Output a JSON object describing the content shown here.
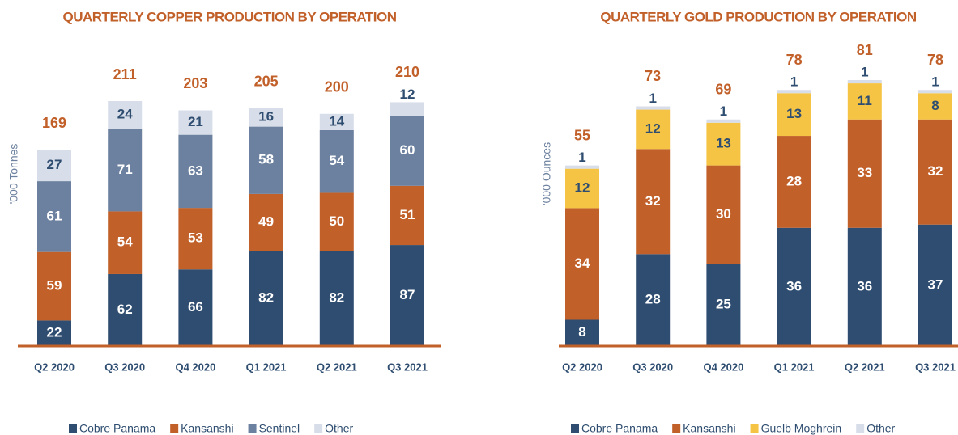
{
  "chart_data": [
    {
      "type": "stacked_bar",
      "title": "QUARTERLY COPPER PRODUCTION BY OPERATION",
      "y_label": "'000 Tonnes",
      "categories": [
        "Q2 2020",
        "Q3 2020",
        "Q4 2020",
        "Q1 2021",
        "Q2 2021",
        "Q3 2021"
      ],
      "series": [
        {
          "name": "Cobre Panama",
          "color": "#2e4d70",
          "values": [
            22,
            62,
            66,
            82,
            82,
            87
          ]
        },
        {
          "name": "Kansanshi",
          "color": "#c2602a",
          "values": [
            59,
            54,
            53,
            49,
            50,
            51
          ]
        },
        {
          "name": "Sentinel",
          "color": "#6c819f",
          "values": [
            61,
            71,
            63,
            58,
            54,
            60
          ]
        },
        {
          "name": "Other",
          "color": "#d8dee9",
          "values": [
            27,
            24,
            21,
            16,
            14,
            12
          ]
        }
      ],
      "totals": [
        169,
        211,
        203,
        205,
        200,
        210
      ]
    },
    {
      "type": "stacked_bar",
      "title": "QUARTERLY GOLD PRODUCTION BY OPERATION",
      "y_label": "'000 Ounces",
      "categories": [
        "Q2 2020",
        "Q3 2020",
        "Q4 2020",
        "Q1 2021",
        "Q2 2021",
        "Q3 2021"
      ],
      "series": [
        {
          "name": "Cobre Panama",
          "color": "#2e4d70",
          "values": [
            8,
            28,
            25,
            36,
            36,
            37
          ]
        },
        {
          "name": "Kansanshi",
          "color": "#c2602a",
          "values": [
            34,
            32,
            30,
            28,
            33,
            32
          ]
        },
        {
          "name": "Guelb Moghrein",
          "color": "#f5c445",
          "values": [
            12,
            12,
            13,
            13,
            11,
            8
          ]
        },
        {
          "name": "Other",
          "color": "#d8dee9",
          "values": [
            1,
            1,
            1,
            1,
            1,
            1
          ]
        }
      ],
      "totals": [
        55,
        73,
        69,
        78,
        81,
        78
      ]
    }
  ]
}
